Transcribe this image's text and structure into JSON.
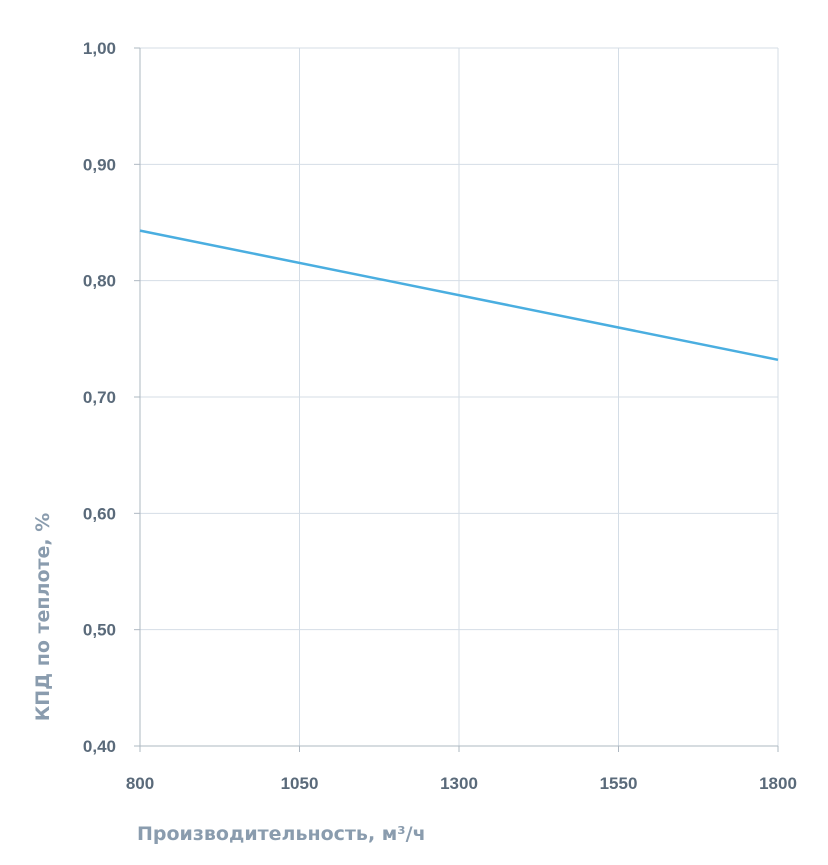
{
  "chart_data": {
    "type": "line",
    "title": "",
    "xlabel": "Производительность, м³/ч",
    "ylabel": "КПД по теплоте, %",
    "x_ticks": [
      "800",
      "1050",
      "1300",
      "1550",
      "1800"
    ],
    "y_ticks": [
      "0,40",
      "0,50",
      "0,60",
      "0,70",
      "0,80",
      "0,90",
      "1,00"
    ],
    "xlim": [
      800,
      1800
    ],
    "ylim": [
      0.4,
      1.0
    ],
    "grid": true,
    "legend": "none",
    "series": [
      {
        "color": "#4aaee0",
        "x": [
          800,
          1800
        ],
        "y": [
          0.843,
          0.732
        ]
      }
    ]
  }
}
